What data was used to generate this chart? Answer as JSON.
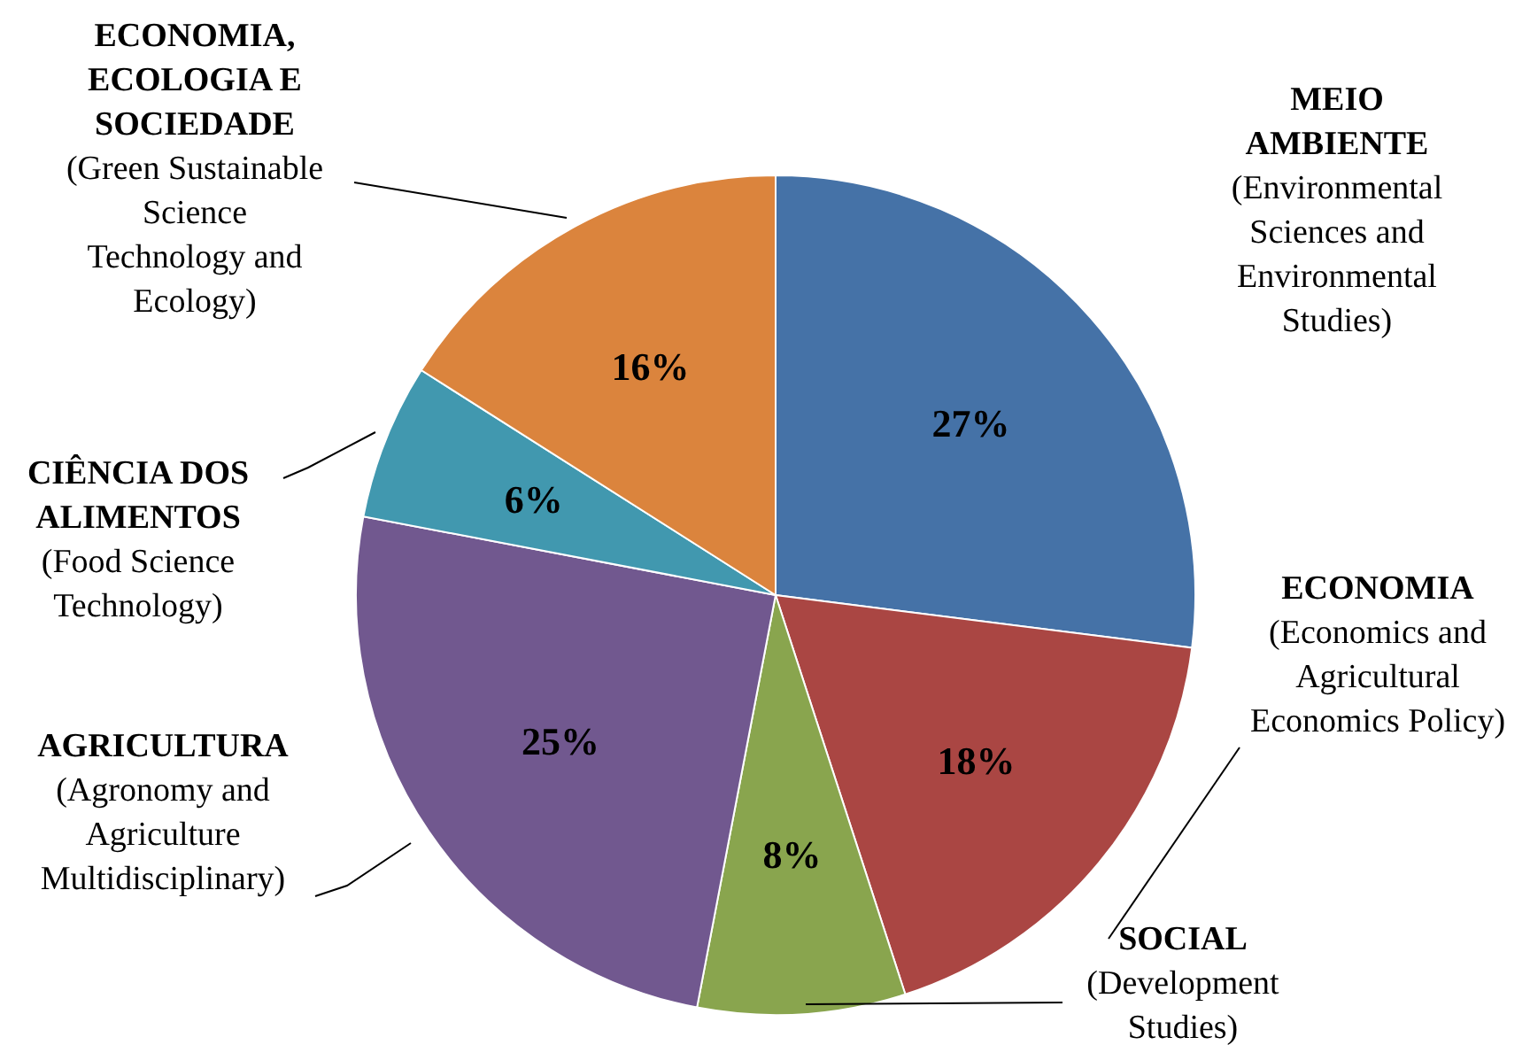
{
  "chart_data": {
    "type": "pie",
    "categories": [
      "MEIO\nAMBIENTE\n(Environmental\nSciences and\nEnvironmental\nStudies)",
      "ECONOMIA\n(Economics and\nAgricultural\nEconomics Policy)",
      "SOCIAL\n(Development\nStudies)",
      "AGRICULTURA\n(Agronomy and\nAgriculture\nMultidisciplinary)",
      "CIÊNCIA DOS\nALIMENTOS\n(Food Science\nTechnology)",
      "ECONOMIA,\nECOLOGIA E\nSOCIEDADE\n(Green Sustainable\nScience\nTechnology and\nEcology)"
    ],
    "values": [
      27,
      18,
      8,
      25,
      6,
      16
    ],
    "colors": [
      "#4572a7",
      "#aa4643",
      "#89a54e",
      "#71588f",
      "#4198af",
      "#db843d"
    ],
    "data_labels": true,
    "value_labels": [
      "27%",
      "18%",
      "8%",
      "25%",
      "6%",
      "16%"
    ]
  }
}
